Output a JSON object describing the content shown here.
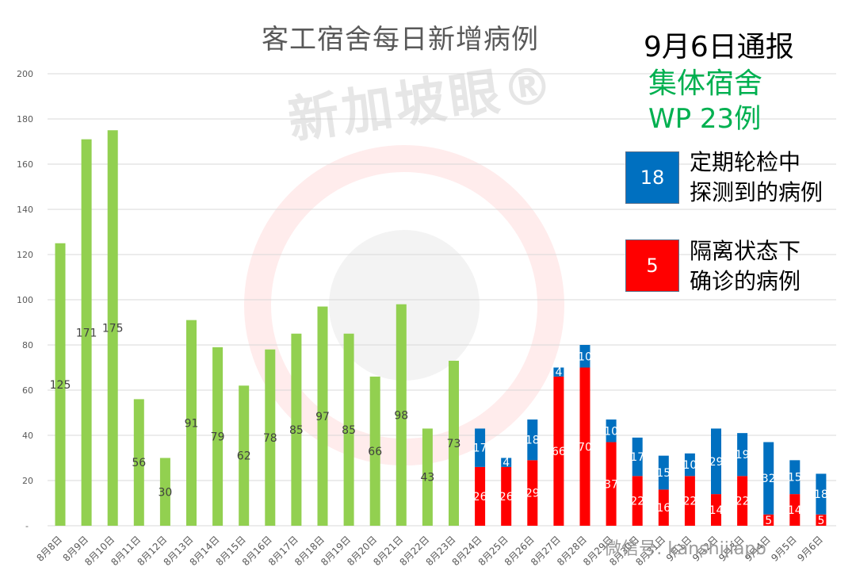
{
  "title": "客工宿舍每日新增病例",
  "report": {
    "date": "9月6日通报",
    "dorm_label": "集体宿舍",
    "dorm_count": "WP 23例"
  },
  "legend": {
    "blue_value": "18",
    "blue_line1": "定期轮检中",
    "blue_line2": "探测到的病例",
    "red_value": "5",
    "red_line1": "隔离状态下",
    "red_line2": "确诊的病例"
  },
  "watermark": "新加坡眼®",
  "wechat": "微信号: kanshijiapo",
  "colors": {
    "green": "#92d050",
    "blue": "#0070c0",
    "red": "#ff0000",
    "grid": "#d9d9d9",
    "axis_text": "#595959"
  },
  "chart_data": {
    "type": "bar",
    "title": "客工宿舍每日新增病例",
    "ylim": [
      0,
      200
    ],
    "yticks": [
      20,
      40,
      60,
      80,
      100,
      120,
      140,
      160,
      180,
      200
    ],
    "ytick_zero_label": "-",
    "grid": true,
    "categories": [
      "8月8日",
      "8月9日",
      "8月10日",
      "8月11日",
      "8月12日",
      "8月13日",
      "8月14日",
      "8月15日",
      "8月16日",
      "8月17日",
      "8月18日",
      "8月19日",
      "8月20日",
      "8月21日",
      "8月22日",
      "8月23日",
      "8月24日",
      "8月25日",
      "8月26日",
      "8月27日",
      "8月28日",
      "8月29日",
      "8月30日",
      "8月31日",
      "9月1日",
      "9月2日",
      "9月3日",
      "9月4日",
      "9月5日",
      "9月6日"
    ],
    "total": [
      125,
      171,
      175,
      56,
      30,
      91,
      79,
      62,
      78,
      85,
      97,
      85,
      66,
      98,
      43,
      73,
      null,
      null,
      null,
      null,
      null,
      null,
      null,
      null,
      null,
      null,
      null,
      null,
      null,
      null
    ],
    "quarantine": [
      null,
      null,
      null,
      null,
      null,
      null,
      null,
      null,
      null,
      null,
      null,
      null,
      null,
      null,
      null,
      null,
      26,
      26,
      29,
      66,
      70,
      37,
      22,
      16,
      22,
      14,
      22,
      5,
      14,
      5
    ],
    "screening": [
      null,
      null,
      null,
      null,
      null,
      null,
      null,
      null,
      null,
      null,
      null,
      null,
      null,
      null,
      null,
      null,
      17,
      4,
      18,
      4,
      10,
      10,
      17,
      15,
      10,
      29,
      19,
      32,
      15,
      18
    ]
  }
}
